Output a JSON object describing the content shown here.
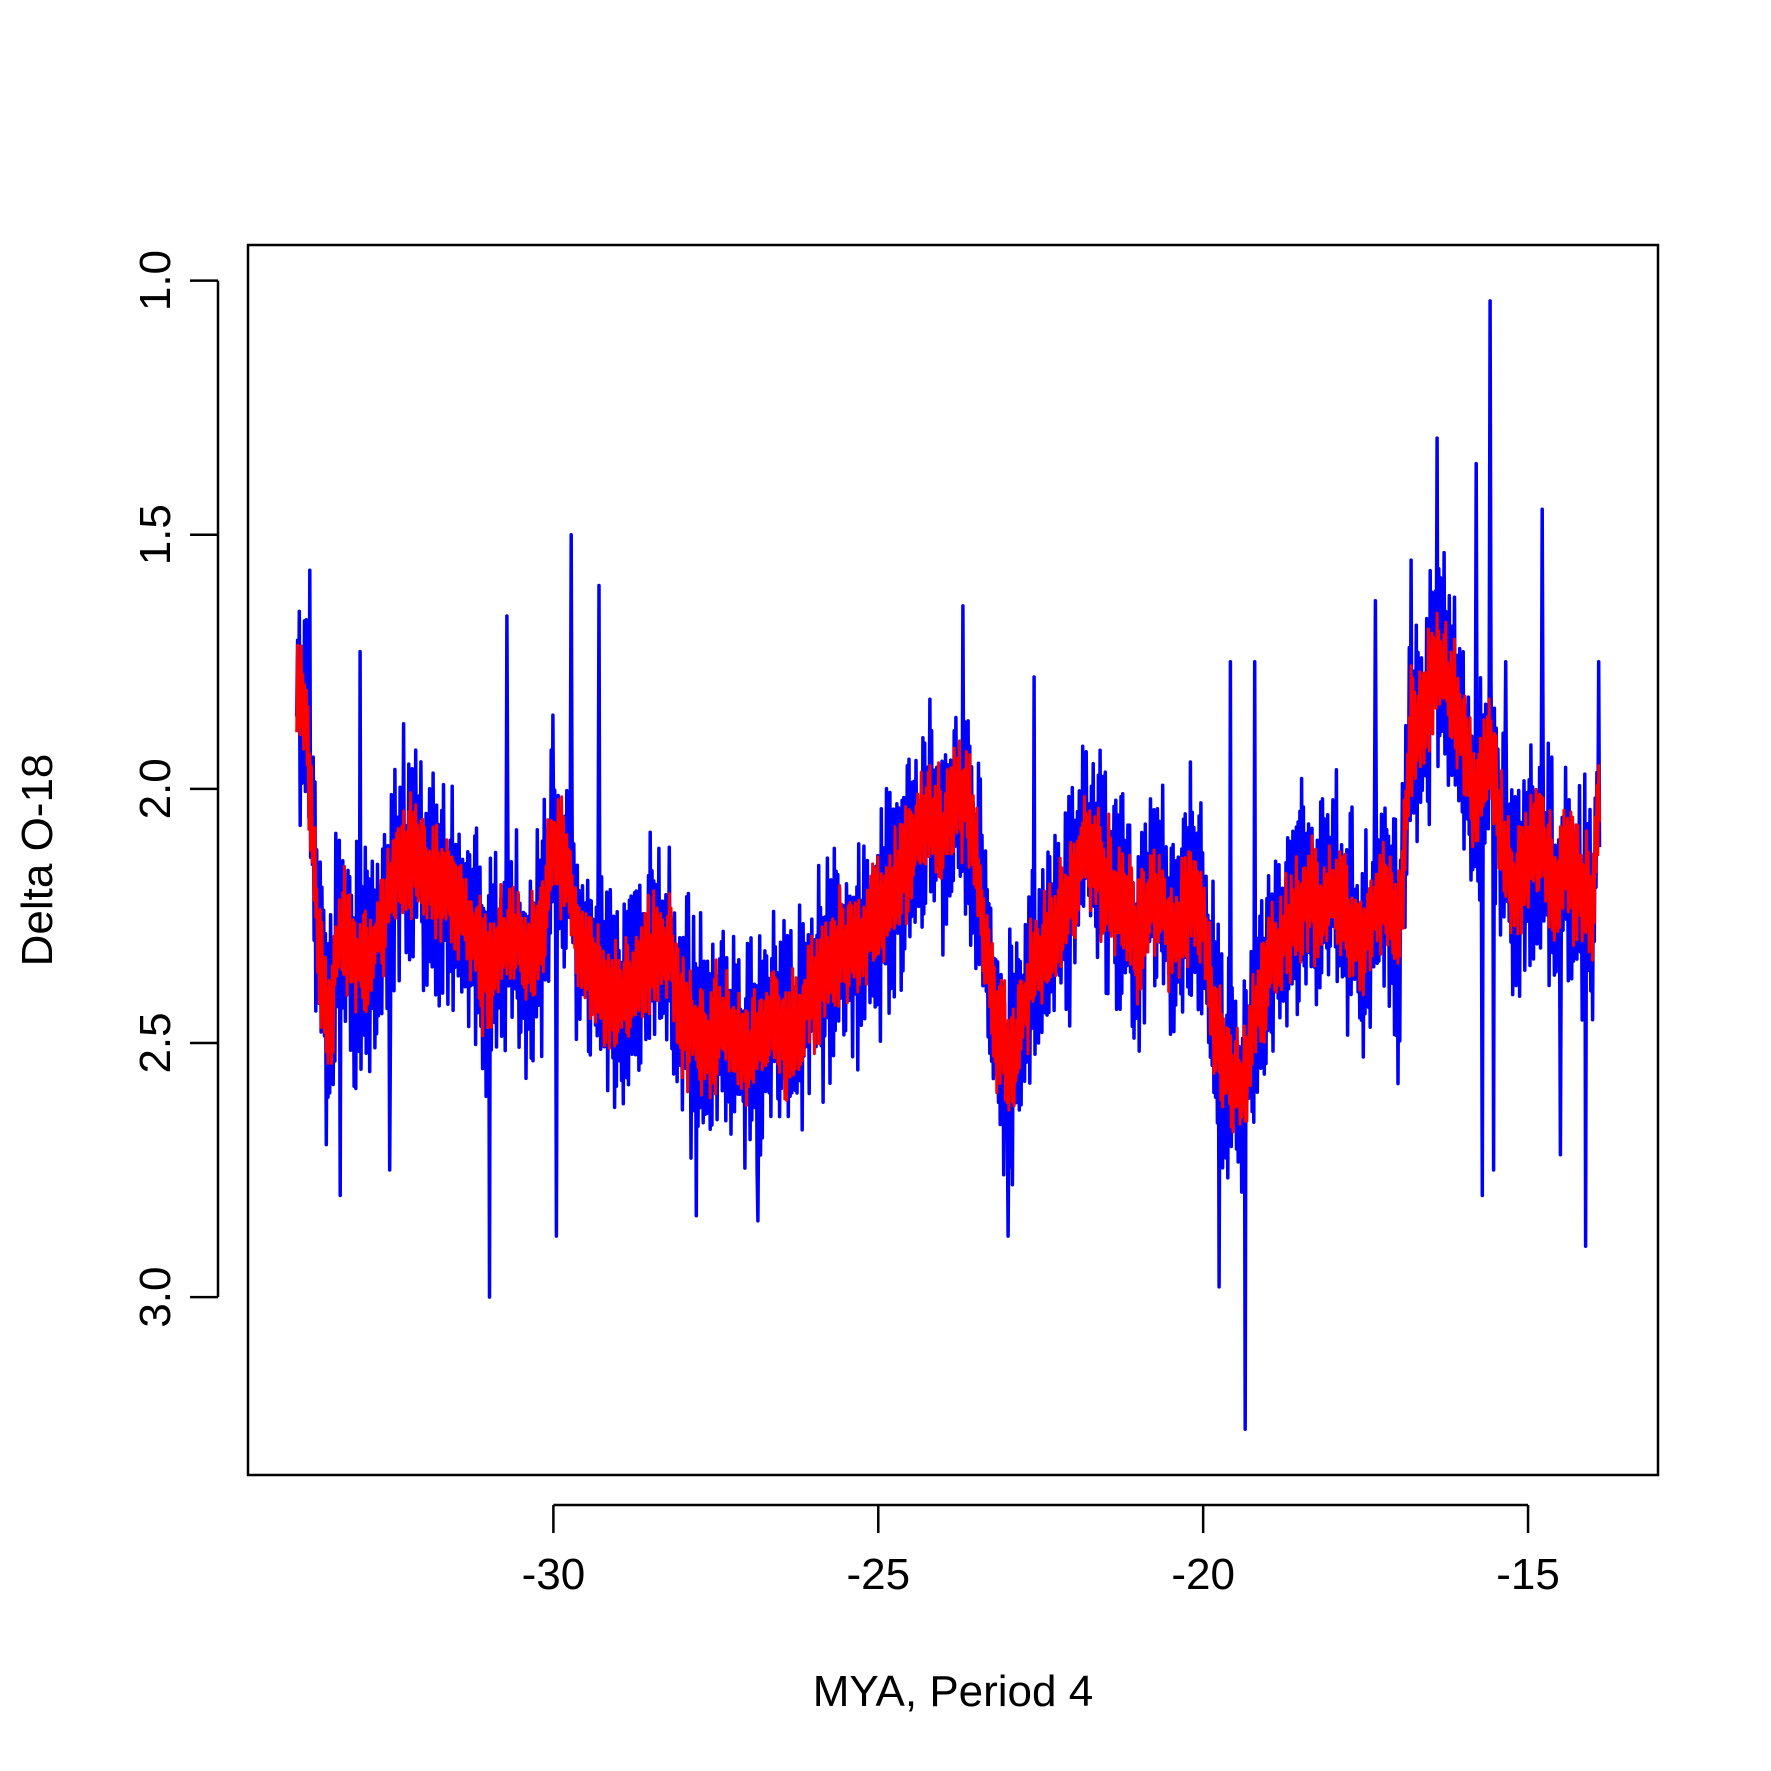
{
  "chart_data": {
    "type": "line",
    "title": "",
    "xlabel": "MYA, Period 4",
    "ylabel": "Delta O-18",
    "xlim": [
      -34.7,
      -13.0
    ],
    "ylim": [
      3.35,
      0.93
    ],
    "y_reversed": true,
    "x_ticks": [
      -30,
      -25,
      -20,
      -15
    ],
    "x_tick_labels": [
      "-30",
      "-25",
      "-20",
      "-15"
    ],
    "y_ticks": [
      1.0,
      1.5,
      2.0,
      2.5,
      3.0
    ],
    "y_tick_labels": [
      "1.0",
      "1.5",
      "2.0",
      "2.5",
      "3.0"
    ],
    "grid": false,
    "legend": "none",
    "colors": {
      "raw": "#0000ff",
      "smooth": "#ff0000",
      "axes": "#000000"
    },
    "series": [
      {
        "color": "#0000ff",
        "line_width": 3.5,
        "noise": 0.17,
        "x": [
          -33.95,
          -33.8,
          -33.6,
          -33.45,
          -33.3,
          -33.15,
          -33.0,
          -32.8,
          -32.6,
          -32.4,
          -32.2,
          -32.0,
          -31.8,
          -31.6,
          -31.4,
          -31.2,
          -31.0,
          -30.8,
          -30.6,
          -30.4,
          -30.2,
          -30.0,
          -29.8,
          -29.6,
          -29.4,
          -29.2,
          -29.0,
          -28.8,
          -28.6,
          -28.4,
          -28.2,
          -28.0,
          -27.8,
          -27.6,
          -27.4,
          -27.2,
          -27.0,
          -26.8,
          -26.6,
          -26.4,
          -26.2,
          -26.0,
          -25.8,
          -25.6,
          -25.4,
          -25.2,
          -25.0,
          -24.8,
          -24.6,
          -24.4,
          -24.2,
          -24.0,
          -23.8,
          -23.6,
          -23.4,
          -23.2,
          -23.0,
          -22.8,
          -22.6,
          -22.4,
          -22.2,
          -22.0,
          -21.8,
          -21.6,
          -21.4,
          -21.2,
          -21.0,
          -20.8,
          -20.6,
          -20.4,
          -20.2,
          -20.0,
          -19.8,
          -19.6,
          -19.4,
          -19.2,
          -19.0,
          -18.8,
          -18.6,
          -18.4,
          -18.2,
          -18.0,
          -17.8,
          -17.6,
          -17.4,
          -17.2,
          -17.0,
          -16.8,
          -16.6,
          -16.4,
          -16.2,
          -16.0,
          -15.8,
          -15.6,
          -15.4,
          -15.2,
          -15.0,
          -14.8,
          -14.6,
          -14.4,
          -14.2,
          -14.0,
          -13.9
        ],
        "y": [
          1.78,
          1.85,
          2.35,
          2.45,
          2.3,
          2.28,
          2.35,
          2.32,
          2.25,
          2.15,
          2.12,
          2.15,
          2.2,
          2.2,
          2.25,
          2.3,
          2.38,
          2.3,
          2.28,
          2.35,
          2.3,
          2.1,
          2.15,
          2.3,
          2.35,
          2.4,
          2.42,
          2.38,
          2.35,
          2.3,
          2.32,
          2.45,
          2.48,
          2.5,
          2.45,
          2.5,
          2.52,
          2.48,
          2.45,
          2.5,
          2.45,
          2.4,
          2.35,
          2.3,
          2.32,
          2.28,
          2.25,
          2.2,
          2.15,
          2.1,
          2.05,
          2.1,
          2.0,
          2.05,
          2.25,
          2.45,
          2.55,
          2.45,
          2.35,
          2.3,
          2.25,
          2.2,
          2.1,
          2.15,
          2.2,
          2.25,
          2.3,
          2.2,
          2.25,
          2.3,
          2.2,
          2.25,
          2.5,
          2.55,
          2.6,
          2.45,
          2.35,
          2.3,
          2.25,
          2.2,
          2.25,
          2.2,
          2.25,
          2.3,
          2.25,
          2.2,
          2.3,
          1.9,
          1.85,
          1.75,
          1.8,
          1.9,
          2.05,
          1.9,
          2.1,
          2.2,
          2.15,
          2.1,
          2.2,
          2.15,
          2.2,
          2.25,
          1.95
        ],
        "extremes": [
          {
            "x": -30.98,
            "y": 3.0
          },
          {
            "x": -29.95,
            "y": 2.88
          },
          {
            "x": -29.72,
            "y": 1.5
          },
          {
            "x": -29.3,
            "y": 1.6
          },
          {
            "x": -30.72,
            "y": 1.66
          },
          {
            "x": -33.28,
            "y": 2.8
          },
          {
            "x": -32.97,
            "y": 1.73
          },
          {
            "x": -32.52,
            "y": 2.75
          },
          {
            "x": -27.8,
            "y": 2.84
          },
          {
            "x": -26.85,
            "y": 2.85
          },
          {
            "x": -23.7,
            "y": 1.64
          },
          {
            "x": -23.0,
            "y": 2.88
          },
          {
            "x": -22.6,
            "y": 1.78
          },
          {
            "x": -19.75,
            "y": 2.98
          },
          {
            "x": -19.58,
            "y": 1.75
          },
          {
            "x": -19.35,
            "y": 3.26
          },
          {
            "x": -19.2,
            "y": 1.75
          },
          {
            "x": -17.35,
            "y": 1.63
          },
          {
            "x": -17.0,
            "y": 2.58
          },
          {
            "x": -16.8,
            "y": 1.55
          },
          {
            "x": -16.4,
            "y": 1.31
          },
          {
            "x": -15.8,
            "y": 1.36
          },
          {
            "x": -15.7,
            "y": 2.8
          },
          {
            "x": -15.58,
            "y": 1.04
          },
          {
            "x": -15.53,
            "y": 2.75
          },
          {
            "x": -15.35,
            "y": 1.75
          },
          {
            "x": -14.78,
            "y": 1.45
          },
          {
            "x": -14.5,
            "y": 2.72
          },
          {
            "x": -14.12,
            "y": 2.9
          },
          {
            "x": -13.92,
            "y": 1.75
          },
          {
            "x": -33.75,
            "y": 1.57
          },
          {
            "x": -33.5,
            "y": 2.7
          }
        ]
      },
      {
        "color": "#ff0000",
        "line_width": 3,
        "noise": 0.09,
        "x": [
          -33.95,
          -33.8,
          -33.6,
          -33.45,
          -33.3,
          -33.15,
          -33.0,
          -32.8,
          -32.6,
          -32.4,
          -32.2,
          -32.0,
          -31.8,
          -31.6,
          -31.4,
          -31.2,
          -31.0,
          -30.8,
          -30.6,
          -30.4,
          -30.2,
          -30.0,
          -29.8,
          -29.6,
          -29.4,
          -29.2,
          -29.0,
          -28.8,
          -28.6,
          -28.4,
          -28.2,
          -28.0,
          -27.8,
          -27.6,
          -27.4,
          -27.2,
          -27.0,
          -26.8,
          -26.6,
          -26.4,
          -26.2,
          -26.0,
          -25.8,
          -25.6,
          -25.4,
          -25.2,
          -25.0,
          -24.8,
          -24.6,
          -24.4,
          -24.2,
          -24.0,
          -23.8,
          -23.6,
          -23.4,
          -23.2,
          -23.0,
          -22.8,
          -22.6,
          -22.4,
          -22.2,
          -22.0,
          -21.8,
          -21.6,
          -21.4,
          -21.2,
          -21.0,
          -20.8,
          -20.6,
          -20.4,
          -20.2,
          -20.0,
          -19.8,
          -19.6,
          -19.4,
          -19.2,
          -19.0,
          -18.8,
          -18.6,
          -18.4,
          -18.2,
          -18.0,
          -17.8,
          -17.6,
          -17.4,
          -17.2,
          -17.0,
          -16.8,
          -16.6,
          -16.4,
          -16.2,
          -16.0,
          -15.8,
          -15.6,
          -15.4,
          -15.2,
          -15.0,
          -14.8,
          -14.6,
          -14.4,
          -14.2,
          -14.0,
          -13.9
        ],
        "y": [
          1.78,
          1.85,
          2.35,
          2.45,
          2.3,
          2.28,
          2.35,
          2.32,
          2.25,
          2.15,
          2.12,
          2.15,
          2.2,
          2.2,
          2.25,
          2.3,
          2.38,
          2.3,
          2.28,
          2.35,
          2.3,
          2.1,
          2.15,
          2.3,
          2.35,
          2.4,
          2.42,
          2.38,
          2.35,
          2.3,
          2.32,
          2.45,
          2.48,
          2.5,
          2.45,
          2.5,
          2.52,
          2.48,
          2.45,
          2.5,
          2.45,
          2.4,
          2.35,
          2.3,
          2.32,
          2.28,
          2.25,
          2.2,
          2.15,
          2.1,
          2.05,
          2.1,
          2.0,
          2.05,
          2.25,
          2.45,
          2.55,
          2.45,
          2.35,
          2.3,
          2.25,
          2.2,
          2.1,
          2.15,
          2.2,
          2.25,
          2.3,
          2.2,
          2.25,
          2.3,
          2.2,
          2.25,
          2.5,
          2.55,
          2.6,
          2.45,
          2.35,
          2.3,
          2.25,
          2.2,
          2.25,
          2.2,
          2.25,
          2.3,
          2.25,
          2.2,
          2.3,
          1.9,
          1.85,
          1.75,
          1.8,
          1.9,
          2.05,
          1.9,
          2.1,
          2.2,
          2.15,
          2.1,
          2.2,
          2.15,
          2.2,
          2.25,
          1.95
        ]
      }
    ]
  }
}
